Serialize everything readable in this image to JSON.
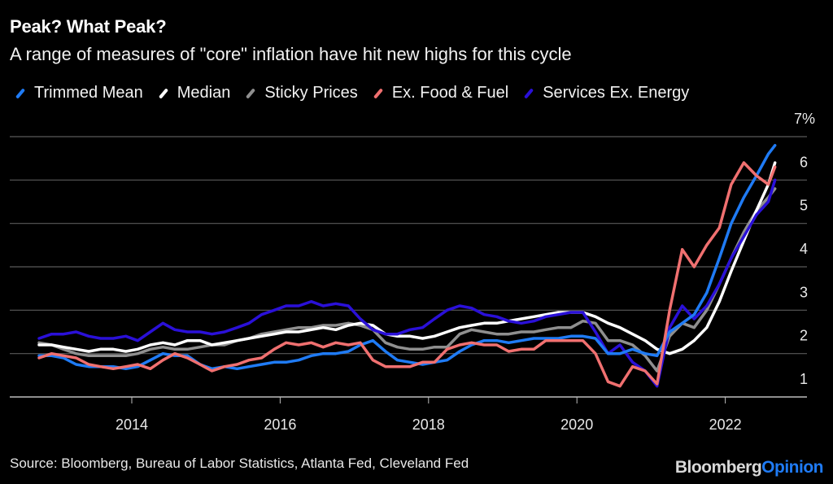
{
  "header": {
    "title": "Peak? What Peak?",
    "subtitle": "A range of measures of \"core\" inflation have hit new highs for this cycle"
  },
  "footer": {
    "source": "Source: Bloomberg, Bureau of Labor Statistics, Atlanta Fed, Cleveland Fed",
    "brand_part1": "Bloomberg",
    "brand_part2": "Opinion"
  },
  "chart_data": {
    "type": "line",
    "title": "Peak? What Peak?",
    "subtitle": "A range of measures of \"core\" inflation have hit new highs for this cycle",
    "xlabel": "",
    "ylabel": "",
    "x_ticks": [
      "2014",
      "2016",
      "2018",
      "2020",
      "2022"
    ],
    "y_ticks": [
      "1",
      "2",
      "3",
      "4",
      "5",
      "6",
      "7%"
    ],
    "ylim": [
      1,
      7
    ],
    "xlim": [
      2012.6,
      2022.9
    ],
    "grid": true,
    "legend_position": "top-left",
    "x": [
      2012.75,
      2012.92,
      2013.08,
      2013.25,
      2013.42,
      2013.58,
      2013.75,
      2013.92,
      2014.08,
      2014.25,
      2014.42,
      2014.58,
      2014.75,
      2014.92,
      2015.08,
      2015.25,
      2015.42,
      2015.58,
      2015.75,
      2015.92,
      2016.08,
      2016.25,
      2016.42,
      2016.58,
      2016.75,
      2016.92,
      2017.08,
      2017.25,
      2017.42,
      2017.58,
      2017.75,
      2017.92,
      2018.08,
      2018.25,
      2018.42,
      2018.58,
      2018.75,
      2018.92,
      2019.08,
      2019.25,
      2019.42,
      2019.58,
      2019.75,
      2019.92,
      2020.08,
      2020.25,
      2020.42,
      2020.58,
      2020.75,
      2020.92,
      2021.08,
      2021.25,
      2021.42,
      2021.58,
      2021.75,
      2021.92,
      2022.08,
      2022.25,
      2022.42,
      2022.58,
      2022.67
    ],
    "series": [
      {
        "name": "Trimmed Mean",
        "color": "#1f7bf5",
        "values": [
          1.95,
          1.95,
          1.9,
          1.75,
          1.7,
          1.7,
          1.7,
          1.65,
          1.7,
          1.85,
          2.0,
          1.95,
          1.95,
          1.75,
          1.65,
          1.7,
          1.65,
          1.7,
          1.75,
          1.8,
          1.8,
          1.85,
          1.95,
          2.0,
          2.0,
          2.05,
          2.2,
          2.3,
          2.05,
          1.85,
          1.8,
          1.75,
          1.8,
          1.85,
          2.05,
          2.2,
          2.3,
          2.3,
          2.25,
          2.3,
          2.35,
          2.35,
          2.35,
          2.4,
          2.4,
          2.35,
          2.0,
          2.0,
          2.1,
          2.0,
          1.95,
          2.5,
          2.7,
          2.9,
          3.4,
          4.2,
          5.0,
          5.6,
          6.1,
          6.6,
          6.8
        ]
      },
      {
        "name": "Median",
        "color": "#ffffff",
        "values": [
          2.2,
          2.2,
          2.15,
          2.1,
          2.05,
          2.1,
          2.1,
          2.05,
          2.1,
          2.2,
          2.25,
          2.2,
          2.3,
          2.3,
          2.2,
          2.25,
          2.3,
          2.35,
          2.4,
          2.45,
          2.5,
          2.5,
          2.55,
          2.6,
          2.55,
          2.65,
          2.7,
          2.65,
          2.45,
          2.4,
          2.4,
          2.35,
          2.4,
          2.5,
          2.6,
          2.65,
          2.7,
          2.7,
          2.75,
          2.8,
          2.85,
          2.9,
          2.95,
          2.95,
          2.95,
          2.85,
          2.7,
          2.6,
          2.45,
          2.3,
          2.1,
          2.0,
          2.1,
          2.3,
          2.6,
          3.2,
          3.9,
          4.6,
          5.3,
          5.9,
          6.4
        ]
      },
      {
        "name": "Sticky Prices",
        "color": "#8f8f8f",
        "values": [
          2.25,
          2.2,
          2.1,
          2.0,
          1.95,
          1.95,
          1.95,
          1.95,
          2.0,
          2.1,
          2.15,
          2.1,
          2.1,
          2.15,
          2.2,
          2.2,
          2.3,
          2.35,
          2.45,
          2.5,
          2.55,
          2.6,
          2.6,
          2.65,
          2.65,
          2.7,
          2.65,
          2.55,
          2.25,
          2.15,
          2.1,
          2.1,
          2.15,
          2.15,
          2.45,
          2.55,
          2.5,
          2.45,
          2.45,
          2.5,
          2.5,
          2.55,
          2.6,
          2.6,
          2.75,
          2.7,
          2.3,
          2.3,
          2.2,
          1.95,
          1.6,
          2.4,
          2.7,
          2.6,
          3.0,
          3.6,
          4.2,
          4.8,
          5.3,
          5.6,
          5.8
        ]
      },
      {
        "name": "Ex. Food & Fuel",
        "color": "#f07070",
        "values": [
          1.9,
          2.0,
          1.95,
          1.9,
          1.75,
          1.7,
          1.65,
          1.7,
          1.75,
          1.65,
          1.85,
          2.0,
          1.9,
          1.75,
          1.6,
          1.7,
          1.75,
          1.85,
          1.9,
          2.1,
          2.25,
          2.2,
          2.25,
          2.15,
          2.25,
          2.2,
          2.25,
          1.85,
          1.7,
          1.7,
          1.7,
          1.8,
          1.8,
          2.1,
          2.2,
          2.25,
          2.2,
          2.2,
          2.05,
          2.1,
          2.1,
          2.3,
          2.3,
          2.3,
          2.3,
          2.0,
          1.35,
          1.25,
          1.7,
          1.6,
          1.3,
          3.0,
          4.4,
          4.0,
          4.5,
          4.9,
          5.9,
          6.4,
          6.1,
          5.9,
          6.3
        ]
      },
      {
        "name": "Services Ex. Energy",
        "color": "#2a10d8",
        "values": [
          2.35,
          2.45,
          2.45,
          2.5,
          2.4,
          2.35,
          2.35,
          2.4,
          2.3,
          2.5,
          2.7,
          2.55,
          2.5,
          2.5,
          2.45,
          2.5,
          2.6,
          2.7,
          2.9,
          3.0,
          3.1,
          3.1,
          3.2,
          3.1,
          3.15,
          3.1,
          2.8,
          2.55,
          2.45,
          2.45,
          2.55,
          2.6,
          2.8,
          3.0,
          3.1,
          3.05,
          2.9,
          2.85,
          2.75,
          2.7,
          2.75,
          2.85,
          2.9,
          2.95,
          2.95,
          2.5,
          2.0,
          2.2,
          1.8,
          1.6,
          1.25,
          2.6,
          3.1,
          2.8,
          3.1,
          3.6,
          4.2,
          4.7,
          5.2,
          5.5,
          6.0
        ]
      }
    ]
  }
}
